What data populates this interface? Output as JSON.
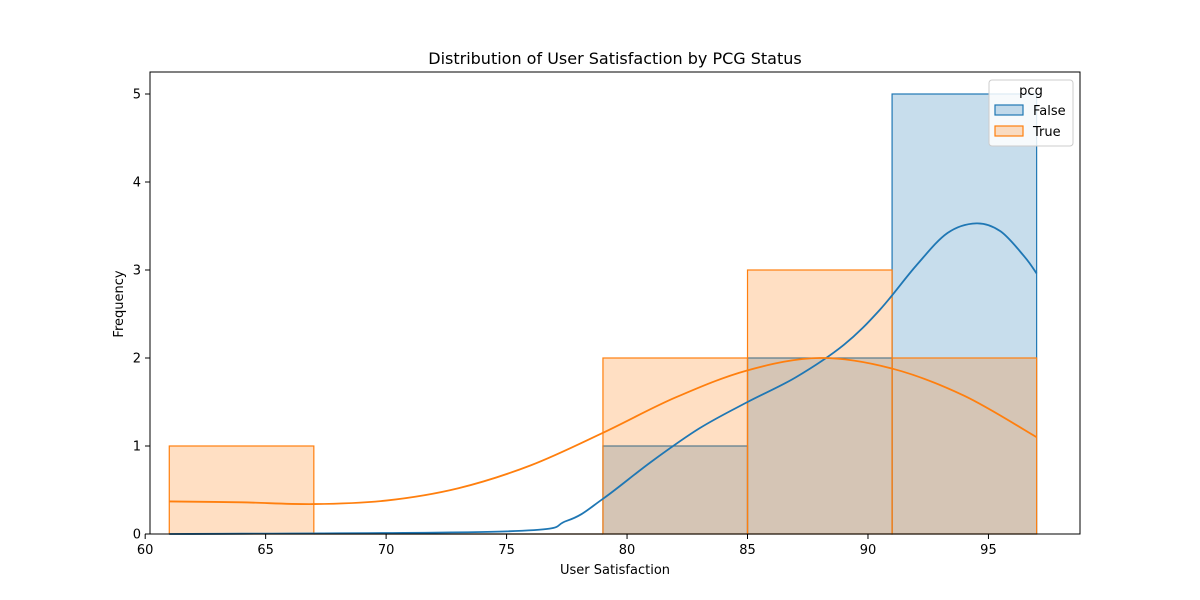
{
  "chart_data": {
    "type": "histogram",
    "title": "Distribution of User Satisfaction by PCG Status",
    "xlabel": "User Satisfaction",
    "ylabel": "Frequency",
    "xlim": [
      60.2,
      98.8
    ],
    "ylim": [
      0,
      5.25
    ],
    "x_ticks": [
      60,
      65,
      70,
      75,
      80,
      85,
      90,
      95
    ],
    "y_ticks": [
      0,
      1,
      2,
      3,
      4,
      5
    ],
    "bin_edges": [
      61,
      67,
      73,
      79,
      85,
      91,
      97
    ],
    "grid": false,
    "legend": {
      "title": "pcg",
      "position": "top-right"
    },
    "series": [
      {
        "name": "False",
        "color": "#1f77b4",
        "fill": "#aecde8",
        "counts": [
          0,
          0,
          0,
          1,
          2,
          5
        ],
        "kde": [
          [
            61,
            0
          ],
          [
            75,
            0.03
          ],
          [
            77.5,
            0.15
          ],
          [
            79,
            0.4
          ],
          [
            81,
            0.82
          ],
          [
            83,
            1.2
          ],
          [
            85,
            1.5
          ],
          [
            87,
            1.78
          ],
          [
            89,
            2.15
          ],
          [
            90.5,
            2.55
          ],
          [
            92,
            3.05
          ],
          [
            93.3,
            3.42
          ],
          [
            94.5,
            3.53
          ],
          [
            95.5,
            3.44
          ],
          [
            96.5,
            3.15
          ],
          [
            97,
            2.96
          ]
        ]
      },
      {
        "name": "True",
        "color": "#ff7f0e",
        "fill": "#ffcda1",
        "counts": [
          1,
          0,
          0,
          2,
          3,
          2
        ],
        "kde": [
          [
            61,
            0.37
          ],
          [
            64,
            0.36
          ],
          [
            67,
            0.34
          ],
          [
            70,
            0.38
          ],
          [
            73,
            0.52
          ],
          [
            76,
            0.78
          ],
          [
            79,
            1.15
          ],
          [
            82,
            1.55
          ],
          [
            85,
            1.86
          ],
          [
            88,
            2.0
          ],
          [
            91,
            1.88
          ],
          [
            94,
            1.57
          ],
          [
            97,
            1.1
          ]
        ]
      }
    ]
  }
}
